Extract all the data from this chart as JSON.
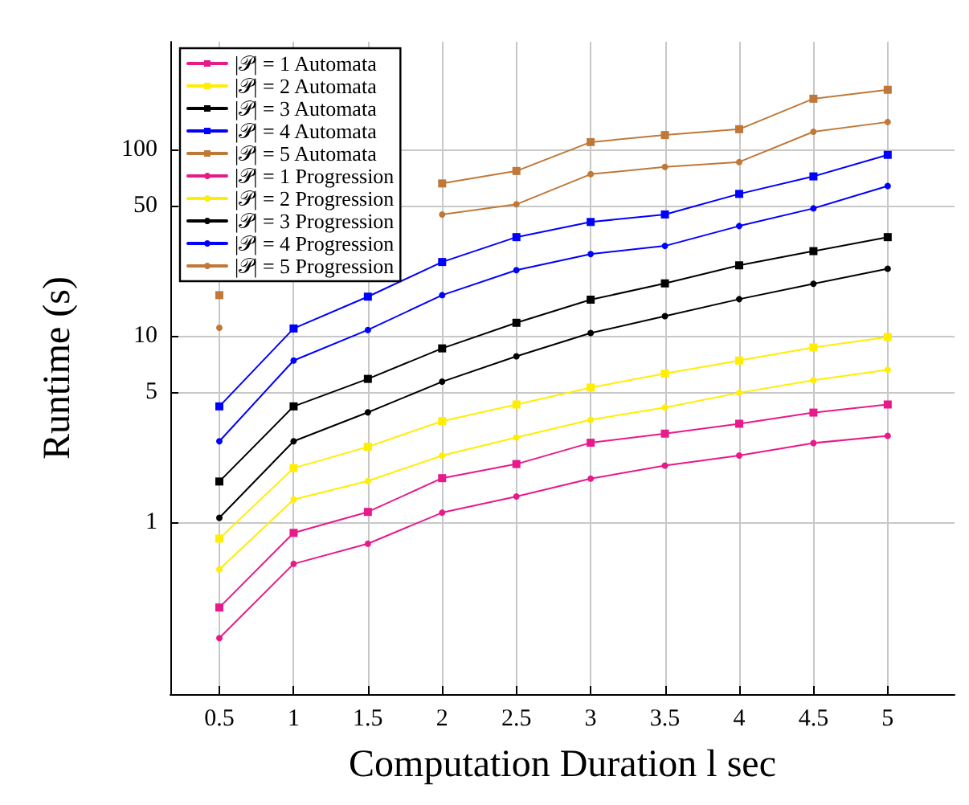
{
  "chart_data": {
    "type": "line",
    "xlabel": "Computation Duration l sec",
    "ylabel": "Runtime (s)",
    "x": [
      0.5,
      1,
      1.5,
      2,
      2.5,
      3,
      3.5,
      4,
      4.5,
      5
    ],
    "xlim": [
      0.17,
      5.45
    ],
    "xticks": [
      0.5,
      1,
      1.5,
      2,
      2.5,
      3,
      3.5,
      4,
      4.5,
      5
    ],
    "ylim": [
      0.12,
      380
    ],
    "yticks": [
      1,
      5,
      10,
      50,
      100
    ],
    "log": "y",
    "grid": true,
    "legend": "top left",
    "series": [
      {
        "name": "|𝒫| = 1 Automata",
        "color": "#e8198b",
        "marker": "square",
        "values": [
          0.35,
          0.88,
          1.14,
          1.73,
          2.06,
          2.68,
          3.0,
          3.39,
          3.89,
          4.3
        ]
      },
      {
        "name": "|𝒫| = 2 Automata",
        "color": "#ffee00",
        "marker": "square",
        "values": [
          0.82,
          1.96,
          2.55,
          3.5,
          4.3,
          5.3,
          6.3,
          7.4,
          8.7,
          9.9
        ]
      },
      {
        "name": "|𝒫| = 3 Automata",
        "color": "#000000",
        "marker": "square",
        "values": [
          1.66,
          4.2,
          5.9,
          8.6,
          11.8,
          15.7,
          19.2,
          24,
          28.6,
          34
        ]
      },
      {
        "name": "|𝒫| = 4 Automata",
        "color": "#0000ff",
        "marker": "square",
        "values": [
          4.2,
          11,
          16.3,
          25,
          34,
          41,
          45,
          58,
          72,
          94
        ]
      },
      {
        "name": "|𝒫| = 5 Automata",
        "color": "#c07838",
        "marker": "square",
        "values": [
          16.6,
          null,
          null,
          66,
          77,
          110,
          120,
          129,
          188,
          210
        ]
      },
      {
        "name": "|𝒫| = 1 Progression",
        "color": "#e8198b",
        "marker": "circle",
        "values": [
          0.24,
          0.6,
          0.77,
          1.13,
          1.38,
          1.72,
          2.02,
          2.29,
          2.67,
          2.92
        ]
      },
      {
        "name": "|𝒫| = 2 Progression",
        "color": "#ffee00",
        "marker": "circle",
        "values": [
          0.56,
          1.33,
          1.67,
          2.29,
          2.86,
          3.56,
          4.14,
          4.97,
          5.8,
          6.6
        ]
      },
      {
        "name": "|𝒫| = 3 Progression",
        "color": "#000000",
        "marker": "circle",
        "values": [
          1.06,
          2.73,
          3.9,
          5.7,
          7.8,
          10.4,
          12.8,
          15.8,
          19.1,
          23
        ]
      },
      {
        "name": "|𝒫| = 4 Progression",
        "color": "#0000ff",
        "marker": "circle",
        "values": [
          2.73,
          7.4,
          10.8,
          16.6,
          22.6,
          27.6,
          30.5,
          39,
          48.5,
          64
        ]
      },
      {
        "name": "|𝒫| = 5 Progression",
        "color": "#c07838",
        "marker": "circle",
        "values": [
          11.1,
          null,
          null,
          45,
          51,
          74,
          81,
          86,
          125,
          141
        ]
      }
    ]
  }
}
